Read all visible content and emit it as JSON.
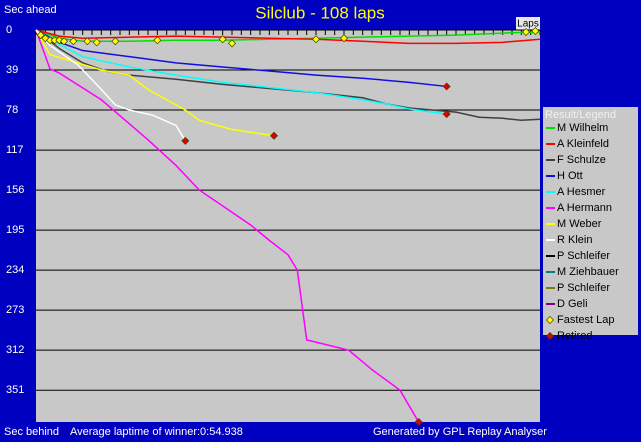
{
  "chart_data": {
    "type": "line",
    "title": "Silclub - 108 laps",
    "y_label_top": "Sec ahead",
    "y_label_bottom": "Sec behind",
    "x_label": "Laps",
    "footer_left": "Average laptime of winner:0:54.938",
    "footer_right": "Generated by GPL Replay Analyser",
    "legend_title": "Result/Legend",
    "legend_position": "right",
    "y_inverted": true,
    "grid": true,
    "xlim": [
      0,
      108
    ],
    "xticks": [
      0,
      2,
      4,
      6,
      8,
      10,
      12,
      14,
      16,
      18,
      20,
      22,
      24,
      26,
      28,
      30,
      32,
      34,
      36,
      38,
      40,
      42,
      44,
      46,
      48,
      50,
      52,
      54,
      56,
      58,
      60,
      62,
      64,
      66,
      68,
      70,
      72,
      74,
      76,
      78,
      80,
      82,
      84,
      86,
      88,
      90,
      92,
      94,
      96,
      98,
      100,
      102,
      104,
      106,
      108
    ],
    "ylim": [
      0,
      382
    ],
    "yticks": [
      0,
      39,
      78,
      117,
      156,
      195,
      234,
      273,
      312,
      351
    ],
    "series": [
      {
        "name": "M Wilhelm",
        "color": "#00e000",
        "x": [
          0,
          5,
          10,
          20,
          30,
          40,
          50,
          60,
          70,
          80,
          90,
          100,
          108
        ],
        "values": [
          0,
          8,
          11,
          11,
          10,
          10,
          9,
          8,
          7,
          6,
          5,
          3,
          2
        ]
      },
      {
        "name": "A Kleinfeld",
        "color": "#ff0000",
        "x": [
          0,
          5,
          10,
          20,
          30,
          40,
          50,
          60,
          70,
          80,
          90,
          100,
          108
        ],
        "values": [
          0,
          6,
          8,
          7,
          6,
          7,
          8,
          9,
          11,
          13,
          13,
          12,
          9
        ]
      },
      {
        "name": "F Schulze",
        "color": "#404040",
        "x": [
          0,
          5,
          10,
          15,
          20,
          30,
          40,
          50,
          60,
          70,
          75,
          80,
          90,
          95,
          100,
          104,
          108
        ],
        "values": [
          0,
          18,
          32,
          40,
          44,
          48,
          53,
          57,
          61,
          66,
          72,
          76,
          80,
          85,
          86,
          88,
          87
        ]
      },
      {
        "name": "H Ott",
        "color": "#1010e0",
        "x": [
          0,
          5,
          10,
          20,
          30,
          40,
          50,
          60,
          70,
          80,
          88
        ],
        "values": [
          0,
          12,
          20,
          26,
          32,
          36,
          40,
          44,
          47,
          51,
          55
        ]
      },
      {
        "name": "A Hesmer",
        "color": "#00ffff",
        "x": [
          0,
          5,
          10,
          20,
          30,
          40,
          50,
          60,
          70,
          75,
          80,
          88
        ],
        "values": [
          0,
          14,
          26,
          36,
          44,
          51,
          56,
          61,
          68,
          72,
          77,
          82
        ]
      },
      {
        "name": "A Hermann",
        "color": "#ff00ff",
        "x": [
          0,
          3,
          5,
          14,
          24,
          30,
          35,
          46,
          50,
          54,
          56,
          58,
          67,
          72,
          78,
          82
        ],
        "values": [
          0,
          38,
          42,
          68,
          107,
          132,
          156,
          190,
          205,
          219,
          234,
          302,
          312,
          331,
          351,
          382
        ]
      },
      {
        "name": "M Weber",
        "color": "#ffff00",
        "x": [
          0,
          3,
          14,
          20,
          24,
          28,
          32,
          35,
          42,
          51
        ],
        "values": [
          0,
          24,
          39,
          44,
          58,
          68,
          78,
          88,
          97,
          103
        ]
      },
      {
        "name": "R Klein",
        "color": "#ffffff",
        "x": [
          0,
          3,
          9,
          14,
          17,
          20,
          25,
          30,
          32
        ],
        "values": [
          0,
          15,
          34,
          58,
          73,
          78,
          83,
          93,
          108
        ]
      },
      {
        "name": "P Schleifer",
        "color": "#000000",
        "x": [],
        "values": []
      },
      {
        "name": "M Ziehbauer",
        "color": "#008080",
        "x": [],
        "values": []
      },
      {
        "name": "P Schleifer",
        "color": "#808000",
        "x": [],
        "values": []
      },
      {
        "name": "D Geli",
        "color": "#800080",
        "x": [],
        "values": []
      }
    ],
    "markers": [
      {
        "name": "Fastest Lap",
        "color": "#ffff00",
        "x": [
          1,
          2,
          3,
          4,
          5,
          6,
          8,
          11,
          13,
          17,
          26,
          40,
          42,
          60,
          66,
          105,
          107
        ],
        "values": [
          5,
          8,
          10,
          10,
          10,
          11,
          11,
          11,
          12,
          11,
          10,
          9,
          13,
          9,
          8,
          2,
          1
        ]
      },
      {
        "name": "Retired",
        "color": "#e00000",
        "x": [
          88,
          88,
          51,
          32,
          82
        ],
        "values": [
          55,
          82,
          103,
          108,
          382
        ]
      }
    ]
  }
}
